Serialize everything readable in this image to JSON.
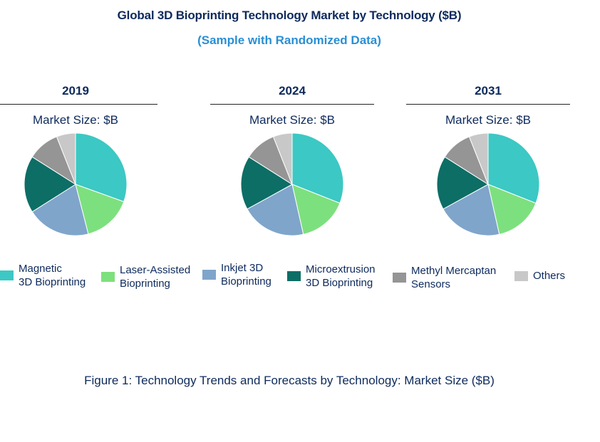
{
  "title": "Global 3D Bioprinting Technology Market by Technology ($B)",
  "subtitle": "(Sample with Randomized Data)",
  "caption": "Figure 1: Technology Trends and Forecasts by Technology: Market Size ($B)",
  "legend": [
    {
      "label": "Magnetic\n3D Bioprinting",
      "color": "#3cc8c4"
    },
    {
      "label": "Laser-Assisted\nBioprinting",
      "color": "#7de07e"
    },
    {
      "label": "Inkjet  3D\nBioprinting",
      "color": "#7fa5cb"
    },
    {
      "label": "Microextrusion\n3D Bioprinting",
      "color": "#0d6e66"
    },
    {
      "label": "Methyl  Mercaptan\nSensors",
      "color": "#959595"
    },
    {
      "label": "Others",
      "color": "#c8c8c8"
    }
  ],
  "chart_data": [
    {
      "type": "pie",
      "title": "2019",
      "subtitle": "Market Size: $B",
      "categories": [
        "Magnetic 3D Bioprinting",
        "Laser-Assisted Bioprinting",
        "Inkjet 3D Bioprinting",
        "Microextrusion 3D Bioprinting",
        "Methyl Mercaptan Sensors",
        "Others"
      ],
      "values": [
        30.5,
        15.5,
        20,
        18,
        10,
        6
      ]
    },
    {
      "type": "pie",
      "title": "2024",
      "subtitle": "Market Size: $B",
      "categories": [
        "Magnetic 3D Bioprinting",
        "Laser-Assisted Bioprinting",
        "Inkjet 3D Bioprinting",
        "Microextrusion 3D Bioprinting",
        "Methyl Mercaptan Sensors",
        "Others"
      ],
      "values": [
        31,
        15.5,
        20.5,
        17,
        10,
        6
      ]
    },
    {
      "type": "pie",
      "title": "2031",
      "subtitle": "Market Size: $B",
      "categories": [
        "Magnetic 3D Bioprinting",
        "Laser-Assisted Bioprinting",
        "Inkjet 3D Bioprinting",
        "Microextrusion 3D Bioprinting",
        "Methyl Mercaptan Sensors",
        "Others"
      ],
      "values": [
        31,
        15.5,
        20.5,
        17,
        10,
        6
      ]
    }
  ]
}
